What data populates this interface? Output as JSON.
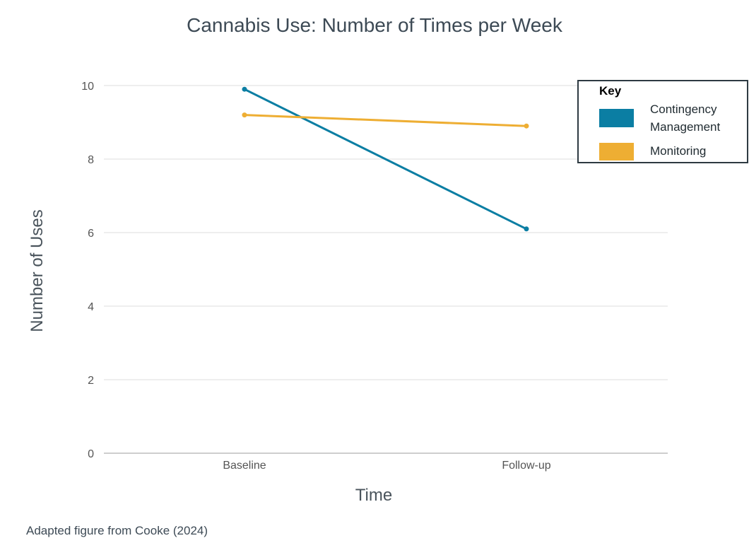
{
  "chart_data": {
    "type": "line",
    "title": "Cannabis Use: Number of Times per Week",
    "xlabel": "Time",
    "ylabel": "Number of Uses",
    "categories": [
      "Baseline",
      "Follow-up"
    ],
    "ylim": [
      0,
      10
    ],
    "yticks": [
      0,
      2,
      4,
      6,
      8,
      10
    ],
    "grid": true,
    "legend": {
      "title": "Key",
      "placement": "top-right",
      "entries": [
        "Contingency Management",
        "Monitoring"
      ]
    },
    "series": [
      {
        "name": "Contingency Management",
        "color": "#0b7ea3",
        "values": [
          9.9,
          6.1
        ]
      },
      {
        "name": "Monitoring",
        "color": "#eeae33",
        "values": [
          9.2,
          8.9
        ]
      }
    ]
  },
  "footer": {
    "source": "Adapted figure from Cooke (2024)"
  }
}
